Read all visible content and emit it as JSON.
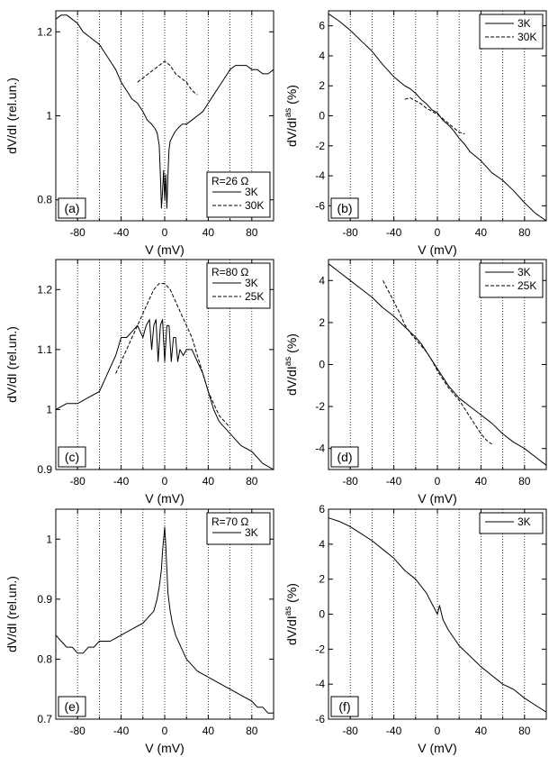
{
  "chart_data": [
    {
      "type": "line",
      "panel": "(a)",
      "xlabel": "V (mV)",
      "ylabel": "dV/dI (rel.un.)",
      "ylabel_sup": "",
      "ylabel_tail": "",
      "xlim": [
        -100,
        100
      ],
      "ylim": [
        0.75,
        1.25
      ],
      "xticks": [
        -80,
        -40,
        0,
        40,
        80
      ],
      "yticks": [
        0.8,
        1.0,
        1.2
      ],
      "vlines": [
        -80,
        -60,
        -40,
        -20,
        0,
        20,
        40,
        60,
        80
      ],
      "legend": {
        "title": "R=26 Ω",
        "position": "bottom-right"
      },
      "series": [
        {
          "name": "3K",
          "style": "solid",
          "x": [
            -100,
            -95,
            -90,
            -85,
            -80,
            -75,
            -70,
            -65,
            -60,
            -55,
            -50,
            -45,
            -40,
            -35,
            -30,
            -25,
            -20,
            -16,
            -12,
            -9,
            -7,
            -5,
            -4,
            -3,
            -2,
            -1,
            0,
            1,
            2,
            3,
            4,
            5,
            7,
            9,
            12,
            16,
            20,
            25,
            30,
            35,
            40,
            45,
            50,
            55,
            60,
            65,
            70,
            75,
            80,
            85,
            90,
            95,
            100
          ],
          "y": [
            1.23,
            1.24,
            1.24,
            1.23,
            1.22,
            1.2,
            1.19,
            1.18,
            1.17,
            1.15,
            1.13,
            1.11,
            1.08,
            1.06,
            1.04,
            1.03,
            1.01,
            0.99,
            0.98,
            0.97,
            0.96,
            0.93,
            0.86,
            0.78,
            0.82,
            0.87,
            0.8,
            0.86,
            0.78,
            0.86,
            0.92,
            0.94,
            0.95,
            0.96,
            0.97,
            0.98,
            0.98,
            0.99,
            1.0,
            1.01,
            1.03,
            1.05,
            1.07,
            1.09,
            1.11,
            1.12,
            1.12,
            1.12,
            1.11,
            1.11,
            1.1,
            1.1,
            1.11
          ]
        },
        {
          "name": "30K",
          "style": "dashed",
          "x": [
            -25,
            -20,
            -15,
            -10,
            -5,
            0,
            5,
            10,
            15,
            20,
            25,
            30
          ],
          "y": [
            1.08,
            1.09,
            1.1,
            1.11,
            1.12,
            1.13,
            1.12,
            1.1,
            1.09,
            1.08,
            1.06,
            1.05
          ]
        }
      ]
    },
    {
      "type": "line",
      "panel": "(b)",
      "xlabel": "V  (mV)",
      "ylabel": "dV/dI",
      "ylabel_sup": "as",
      "ylabel_tail": " (%)",
      "xlim": [
        -100,
        100
      ],
      "ylim": [
        -7,
        7
      ],
      "xticks": [
        -80,
        -40,
        0,
        40,
        80
      ],
      "yticks": [
        -6,
        -4,
        -2,
        0,
        2,
        4,
        6
      ],
      "vlines": [
        -80,
        -60,
        -40,
        -20,
        0,
        20,
        40,
        60,
        80
      ],
      "legend": {
        "title": "",
        "position": "top-right"
      },
      "series": [
        {
          "name": "3K",
          "style": "solid",
          "x": [
            -100,
            -90,
            -80,
            -70,
            -60,
            -50,
            -40,
            -30,
            -25,
            -20,
            -15,
            -10,
            -5,
            0,
            5,
            10,
            15,
            20,
            25,
            30,
            40,
            50,
            60,
            70,
            80,
            90,
            100
          ],
          "y": [
            6.8,
            6.3,
            5.7,
            5.0,
            4.3,
            3.4,
            2.6,
            2.0,
            1.8,
            1.5,
            1.1,
            0.8,
            0.4,
            0.2,
            -0.3,
            -0.6,
            -1.0,
            -1.5,
            -1.9,
            -2.4,
            -3.0,
            -3.8,
            -4.3,
            -5.0,
            -5.8,
            -6.5,
            -7.0
          ]
        },
        {
          "name": "30K",
          "style": "dashed",
          "x": [
            -30,
            -25,
            -20,
            -15,
            -10,
            -5,
            0,
            5,
            10,
            15,
            20,
            25
          ],
          "y": [
            1.1,
            1.2,
            1.0,
            0.8,
            0.5,
            0.3,
            0.1,
            -0.2,
            -0.5,
            -0.8,
            -1.1,
            -1.2
          ]
        }
      ]
    },
    {
      "type": "line",
      "panel": "(c)",
      "xlabel": "V (mV)",
      "ylabel": "dV/dI (rel.un.)",
      "ylabel_sup": "",
      "ylabel_tail": "",
      "xlim": [
        -100,
        100
      ],
      "ylim": [
        0.9,
        1.25
      ],
      "xticks": [
        -80,
        -40,
        0,
        40,
        80
      ],
      "yticks": [
        0.9,
        1.0,
        1.1,
        1.2
      ],
      "vlines": [
        -80,
        -60,
        -40,
        -20,
        0,
        20,
        40,
        60,
        80
      ],
      "legend": {
        "title": "R=80 Ω",
        "position": "top-right"
      },
      "series": [
        {
          "name": "3K",
          "style": "solid",
          "x": [
            -100,
            -90,
            -80,
            -70,
            -60,
            -55,
            -50,
            -45,
            -40,
            -35,
            -30,
            -25,
            -20,
            -17,
            -14,
            -12,
            -10,
            -8,
            -6,
            -4,
            -2,
            0,
            2,
            4,
            6,
            8,
            10,
            12,
            14,
            17,
            20,
            25,
            30,
            35,
            40,
            45,
            50,
            60,
            70,
            80,
            90,
            100
          ],
          "y": [
            1.0,
            1.01,
            1.01,
            1.02,
            1.03,
            1.05,
            1.07,
            1.09,
            1.12,
            1.12,
            1.13,
            1.14,
            1.12,
            1.14,
            1.15,
            1.1,
            1.14,
            1.15,
            1.08,
            1.14,
            1.15,
            1.08,
            1.14,
            1.14,
            1.08,
            1.12,
            1.12,
            1.08,
            1.1,
            1.09,
            1.1,
            1.1,
            1.08,
            1.06,
            1.03,
            1.0,
            0.98,
            0.96,
            0.94,
            0.93,
            0.91,
            0.9
          ]
        },
        {
          "name": "25K",
          "style": "dashed",
          "x": [
            -45,
            -40,
            -35,
            -30,
            -25,
            -20,
            -15,
            -10,
            -5,
            0,
            5,
            10,
            15,
            20,
            25,
            30,
            35,
            40,
            45,
            50,
            55,
            60
          ],
          "y": [
            1.06,
            1.08,
            1.1,
            1.12,
            1.14,
            1.16,
            1.18,
            1.2,
            1.21,
            1.21,
            1.2,
            1.18,
            1.16,
            1.14,
            1.12,
            1.09,
            1.06,
            1.03,
            1.01,
            0.99,
            0.98,
            0.97
          ]
        }
      ]
    },
    {
      "type": "line",
      "panel": "(d)",
      "xlabel": "V (mV)",
      "ylabel": "dV/dI",
      "ylabel_sup": "as",
      "ylabel_tail": " (%)",
      "xlim": [
        -100,
        100
      ],
      "ylim": [
        -5,
        5
      ],
      "xticks": [
        -80,
        -40,
        0,
        40,
        80
      ],
      "yticks": [
        -4,
        -2,
        0,
        2,
        4
      ],
      "vlines": [
        -80,
        -60,
        -40,
        -20,
        0,
        20,
        40,
        60,
        80
      ],
      "legend": {
        "title": "",
        "position": "top-right"
      },
      "series": [
        {
          "name": "3K",
          "style": "solid",
          "x": [
            -100,
            -90,
            -80,
            -70,
            -60,
            -50,
            -40,
            -30,
            -20,
            -15,
            -10,
            -5,
            0,
            5,
            10,
            15,
            20,
            30,
            40,
            50,
            60,
            70,
            80,
            90,
            100
          ],
          "y": [
            4.8,
            4.4,
            4.0,
            3.6,
            3.2,
            2.7,
            2.3,
            1.8,
            1.3,
            1.0,
            0.6,
            0.2,
            -0.2,
            -0.6,
            -1.0,
            -1.3,
            -1.6,
            -2.0,
            -2.4,
            -2.8,
            -3.3,
            -3.7,
            -4.0,
            -4.4,
            -4.8
          ]
        },
        {
          "name": "25K",
          "style": "dashed",
          "x": [
            -50,
            -45,
            -40,
            -35,
            -30,
            -25,
            -20,
            -15,
            -10,
            -5,
            0,
            5,
            10,
            15,
            20,
            25,
            30,
            35,
            40,
            45,
            50
          ],
          "y": [
            4.0,
            3.5,
            3.0,
            2.5,
            1.9,
            1.5,
            1.2,
            0.9,
            0.6,
            0.2,
            -0.3,
            -0.7,
            -1.1,
            -1.4,
            -1.7,
            -2.1,
            -2.5,
            -2.9,
            -3.3,
            -3.6,
            -3.8
          ]
        }
      ]
    },
    {
      "type": "line",
      "panel": "(e)",
      "xlabel": "V (mV)",
      "ylabel": "dV/dI (rel.un.)",
      "ylabel_sup": "",
      "ylabel_tail": "",
      "xlim": [
        -100,
        100
      ],
      "ylim": [
        0.7,
        1.05
      ],
      "xticks": [
        -80,
        -40,
        0,
        40,
        80
      ],
      "yticks": [
        0.7,
        0.8,
        0.9,
        1.0
      ],
      "vlines": [
        -80,
        -60,
        -40,
        -20,
        0,
        20,
        40,
        60,
        80
      ],
      "legend": {
        "title": "R=70 Ω",
        "position": "top-right"
      },
      "series": [
        {
          "name": "3K",
          "style": "solid",
          "x": [
            -100,
            -95,
            -90,
            -85,
            -80,
            -75,
            -70,
            -65,
            -60,
            -50,
            -40,
            -30,
            -20,
            -15,
            -10,
            -7,
            -5,
            -3,
            -2,
            -1,
            0,
            1,
            2,
            3,
            5,
            7,
            10,
            15,
            20,
            30,
            40,
            50,
            60,
            70,
            80,
            85,
            90,
            95,
            100
          ],
          "y": [
            0.84,
            0.83,
            0.82,
            0.82,
            0.81,
            0.81,
            0.82,
            0.82,
            0.83,
            0.83,
            0.84,
            0.85,
            0.86,
            0.87,
            0.88,
            0.9,
            0.92,
            0.95,
            0.98,
            1.0,
            1.02,
            0.99,
            0.95,
            0.91,
            0.88,
            0.86,
            0.84,
            0.82,
            0.8,
            0.78,
            0.77,
            0.76,
            0.75,
            0.74,
            0.73,
            0.72,
            0.72,
            0.71,
            0.71
          ]
        }
      ]
    },
    {
      "type": "line",
      "panel": "(f)",
      "xlabel": "V (mV)",
      "ylabel": "dV/dI",
      "ylabel_sup": "as",
      "ylabel_tail": " (%)",
      "xlim": [
        -100,
        100
      ],
      "ylim": [
        -6,
        6
      ],
      "xticks": [
        -80,
        -40,
        0,
        40,
        80
      ],
      "yticks": [
        -6,
        -4,
        -2,
        0,
        2,
        4,
        6
      ],
      "vlines": [
        -80,
        -60,
        -40,
        -20,
        0,
        20,
        40,
        60,
        80
      ],
      "legend": {
        "title": "",
        "position": "top-right"
      },
      "series": [
        {
          "name": "3K",
          "style": "solid",
          "x": [
            -100,
            -90,
            -80,
            -70,
            -60,
            -50,
            -40,
            -30,
            -20,
            -10,
            -5,
            0,
            2,
            5,
            10,
            20,
            30,
            40,
            50,
            60,
            70,
            80,
            90,
            100
          ],
          "y": [
            5.5,
            5.3,
            5.0,
            4.6,
            4.2,
            3.7,
            3.2,
            2.5,
            2.0,
            1.2,
            0.6,
            0.0,
            0.5,
            -0.3,
            -0.9,
            -1.8,
            -2.4,
            -3.0,
            -3.5,
            -4.0,
            -4.3,
            -4.8,
            -5.2,
            -5.6
          ]
        }
      ]
    }
  ]
}
